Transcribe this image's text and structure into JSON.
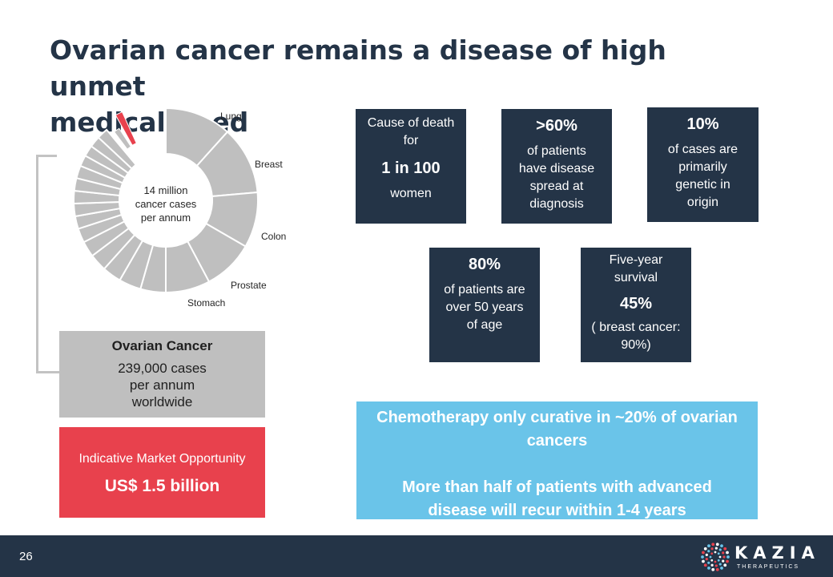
{
  "slide": {
    "title": "Ovarian cancer remains a disease of high unmet\nmedical need",
    "page_number": "26"
  },
  "chart_data": {
    "type": "pie",
    "center_label": [
      "14 million",
      "cancer cases",
      "per annum"
    ],
    "labeled_segments": [
      "Lung",
      "Breast",
      "Colon",
      "Prostate",
      "Stomach"
    ],
    "unlabeled_segment_count": 14,
    "highlighted_segment": "Ovarian Cancer",
    "segment_color": "#bfbfbf",
    "highlight_color": "#e8414d"
  },
  "ovarian_box": {
    "heading": "Ovarian Cancer",
    "body": "239,000 cases\nper annum\nworldwide"
  },
  "market_box": {
    "label": "Indicative Market Opportunity",
    "value": "US$ 1.5 billion"
  },
  "stats": {
    "death": {
      "line1": "Cause of death\nfor",
      "big": "1 in 100",
      "line2": "women"
    },
    "spread": {
      "big": ">60%",
      "text": "of patients\nhave disease\nspread at\ndiagnosis"
    },
    "genetic": {
      "big": "10%",
      "text": "of cases are\nprimarily\ngenetic in\norigin"
    },
    "age": {
      "big": "80%",
      "text": "of patients are\nover 50 years\nof age"
    },
    "survival": {
      "line1": "Five-year\nsurvival",
      "big": "45%",
      "line2": "( breast cancer:\n90%)"
    }
  },
  "callout": {
    "line1": "Chemotherapy only curative in ~20% of ovarian\ncancers",
    "line2": "More than half of patients with advanced\ndisease will recur within 1-4 years"
  },
  "logo": {
    "word": "KAZIA",
    "sub": "THERAPEUTICS"
  },
  "colors": {
    "navy": "#243447",
    "grey": "#bfbfbf",
    "red": "#e8414d",
    "blue": "#6ac4e9"
  }
}
